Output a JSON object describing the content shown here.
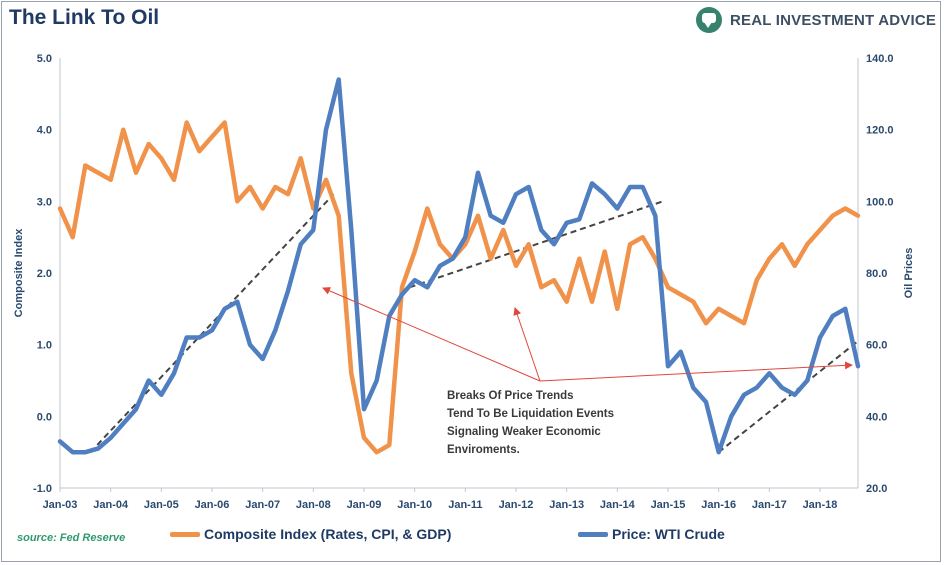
{
  "header": {
    "title": "The Link To Oil",
    "brand_name": "REAL INVESTMENT ADVICE"
  },
  "footer": {
    "source": "source: Fed Reserve"
  },
  "colors": {
    "composite": "#f0924a",
    "wti": "#4f7fc1",
    "trend": "#444444",
    "annotation_arrow": "#e0483b"
  },
  "chart_data": {
    "type": "line",
    "title": "The Link To Oil",
    "ylabel": "Composite Index",
    "y2label": "Oil Prices",
    "ylim": [
      -1.0,
      5.0
    ],
    "y2lim": [
      20.0,
      140.0
    ],
    "x_ticks": [
      "Jan-03",
      "Jan-04",
      "Jan-05",
      "Jan-06",
      "Jan-07",
      "Jan-08",
      "Jan-09",
      "Jan-10",
      "Jan-11",
      "Jan-12",
      "Jan-13",
      "Jan-14",
      "Jan-15",
      "Jan-16",
      "Jan-17",
      "Jan-18"
    ],
    "y_ticks": [
      "-1.0",
      "0.0",
      "1.0",
      "2.0",
      "3.0",
      "4.0",
      "5.0"
    ],
    "y2_ticks": [
      "20.0",
      "40.0",
      "60.0",
      "80.0",
      "100.0",
      "120.0",
      "140.0"
    ],
    "grid": false,
    "legend_position": "bottom",
    "annotation": [
      "Breaks Of Price Trends",
      "Tend To Be Liquidation Events",
      "Signaling Weaker Economic",
      "Enviroments."
    ],
    "series": [
      {
        "name": "Composite Index (Rates, CPI, & GDP)",
        "axis": "left",
        "x": [
          2003.0,
          2003.25,
          2003.5,
          2003.75,
          2004.0,
          2004.25,
          2004.5,
          2004.75,
          2005.0,
          2005.25,
          2005.5,
          2005.75,
          2006.0,
          2006.25,
          2006.5,
          2006.75,
          2007.0,
          2007.25,
          2007.5,
          2007.75,
          2008.0,
          2008.25,
          2008.5,
          2008.75,
          2009.0,
          2009.25,
          2009.5,
          2009.75,
          2010.0,
          2010.25,
          2010.5,
          2010.75,
          2011.0,
          2011.25,
          2011.5,
          2011.75,
          2012.0,
          2012.25,
          2012.5,
          2012.75,
          2013.0,
          2013.25,
          2013.5,
          2013.75,
          2014.0,
          2014.25,
          2014.5,
          2014.75,
          2015.0,
          2015.25,
          2015.5,
          2015.75,
          2016.0,
          2016.25,
          2016.5,
          2016.75,
          2017.0,
          2017.25,
          2017.5,
          2017.75,
          2018.0,
          2018.25,
          2018.5,
          2018.75
        ],
        "values": [
          2.9,
          2.5,
          3.5,
          3.4,
          3.3,
          4.0,
          3.4,
          3.8,
          3.6,
          3.3,
          4.1,
          3.7,
          3.9,
          4.1,
          3.0,
          3.2,
          2.9,
          3.2,
          3.1,
          3.6,
          2.9,
          3.3,
          2.8,
          0.6,
          -0.3,
          -0.5,
          -0.4,
          1.8,
          2.3,
          2.9,
          2.4,
          2.2,
          2.4,
          2.8,
          2.2,
          2.6,
          2.1,
          2.4,
          1.8,
          1.9,
          1.6,
          2.2,
          1.6,
          2.3,
          1.5,
          2.4,
          2.5,
          2.2,
          1.8,
          1.7,
          1.6,
          1.3,
          1.5,
          1.4,
          1.3,
          1.9,
          2.2,
          2.4,
          2.1,
          2.4,
          2.6,
          2.8,
          2.9,
          2.8
        ]
      },
      {
        "name": "Price: WTI Crude",
        "axis": "right",
        "x": [
          2003.0,
          2003.25,
          2003.5,
          2003.75,
          2004.0,
          2004.25,
          2004.5,
          2004.75,
          2005.0,
          2005.25,
          2005.5,
          2005.75,
          2006.0,
          2006.25,
          2006.5,
          2006.75,
          2007.0,
          2007.25,
          2007.5,
          2007.75,
          2008.0,
          2008.25,
          2008.5,
          2008.75,
          2009.0,
          2009.25,
          2009.5,
          2009.75,
          2010.0,
          2010.25,
          2010.5,
          2010.75,
          2011.0,
          2011.25,
          2011.5,
          2011.75,
          2012.0,
          2012.25,
          2012.5,
          2012.75,
          2013.0,
          2013.25,
          2013.5,
          2013.75,
          2014.0,
          2014.25,
          2014.5,
          2014.75,
          2015.0,
          2015.25,
          2015.5,
          2015.75,
          2016.0,
          2016.25,
          2016.5,
          2016.75,
          2017.0,
          2017.25,
          2017.5,
          2017.75,
          2018.0,
          2018.25,
          2018.5,
          2018.75
        ],
        "values": [
          33,
          30,
          30,
          31,
          34,
          38,
          42,
          50,
          46,
          52,
          62,
          62,
          64,
          70,
          72,
          60,
          56,
          64,
          75,
          88,
          92,
          120,
          134,
          92,
          42,
          50,
          68,
          74,
          78,
          76,
          82,
          84,
          90,
          108,
          96,
          94,
          102,
          104,
          92,
          88,
          94,
          95,
          105,
          102,
          98,
          104,
          104,
          96,
          54,
          58,
          48,
          44,
          30,
          40,
          46,
          48,
          52,
          48,
          46,
          50,
          62,
          68,
          70,
          54
        ]
      }
    ]
  }
}
